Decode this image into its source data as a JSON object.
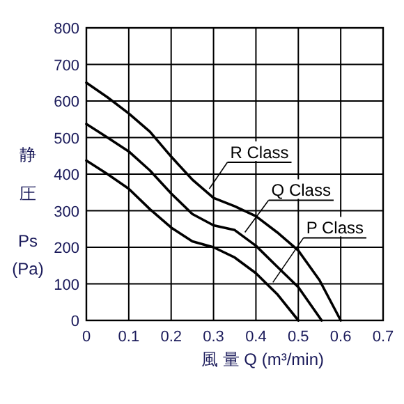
{
  "chart_data": {
    "type": "line",
    "xlabel": "風 量 Q (m³/min)",
    "ylabel": "静圧 Ps (Pa)",
    "xlim": [
      0,
      0.7
    ],
    "xticks": [
      0,
      0.1,
      0.2,
      0.3,
      0.4,
      0.5,
      0.6,
      0.7
    ],
    "ylim": [
      0,
      800
    ],
    "yticks": [
      0,
      100,
      200,
      300,
      400,
      500,
      600,
      700,
      800
    ],
    "grid": true,
    "marker": "none",
    "line_style": "solid",
    "series": [
      {
        "color": "#000000",
        "x": [
          0,
          0.05,
          0.1,
          0.15,
          0.2,
          0.25,
          0.3,
          0.35,
          0.4,
          0.45,
          0.5,
          0.55,
          0.6
        ],
        "values": [
          650,
          610,
          566,
          516,
          448,
          385,
          335,
          312,
          285,
          241,
          191,
          110,
          0
        ]
      },
      {
        "color": "#000000",
        "x": [
          0,
          0.05,
          0.1,
          0.15,
          0.2,
          0.25,
          0.3,
          0.35,
          0.4,
          0.45,
          0.5,
          0.555
        ],
        "values": [
          537,
          500,
          462,
          410,
          347,
          291,
          260,
          247,
          204,
          147,
          91,
          0
        ]
      },
      {
        "color": "#000000",
        "x": [
          0,
          0.05,
          0.1,
          0.15,
          0.2,
          0.25,
          0.3,
          0.35,
          0.4,
          0.45,
          0.5
        ],
        "values": [
          437,
          400,
          360,
          304,
          254,
          216,
          200,
          172,
          129,
          72,
          0
        ]
      }
    ],
    "annotations": [
      {
        "text": "R Class",
        "x": 0.29,
        "y": 360
      },
      {
        "text": "Q Class",
        "x": 0.374,
        "y": 241
      },
      {
        "text": "P Class",
        "x": 0.44,
        "y": 104
      }
    ]
  }
}
